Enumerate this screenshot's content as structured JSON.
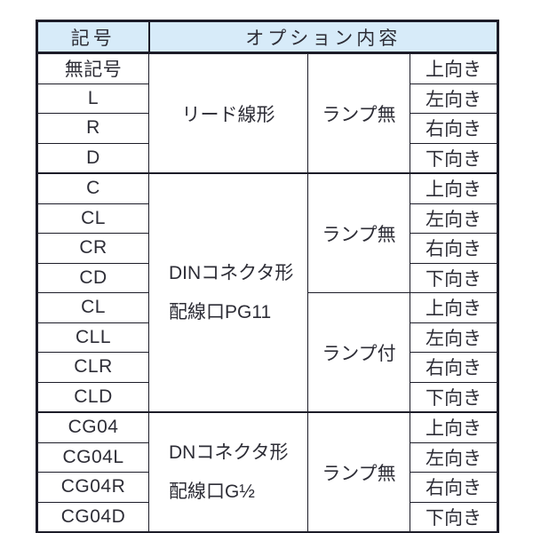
{
  "colors": {
    "header_bg": "#d7ebf9",
    "border": "#1c1c28",
    "text": "#2d2d36"
  },
  "table": {
    "header": {
      "symbol": "記号",
      "option": "オプション内容"
    },
    "groups": [
      {
        "codes": [
          "無記号",
          "L",
          "R",
          "D"
        ],
        "type_line1": "リード線形",
        "type_line2": "",
        "lamps": [
          "ランプ無"
        ],
        "directions": [
          "上向き",
          "左向き",
          "右向き",
          "下向き"
        ]
      },
      {
        "codes": [
          "C",
          "CL",
          "CR",
          "CD",
          "CL",
          "CLL",
          "CLR",
          "CLD"
        ],
        "type_line1": "DINコネクタ形",
        "type_line2": "配線口PG11",
        "lamps": [
          "ランプ無",
          "ランプ付"
        ],
        "directions": [
          "上向き",
          "左向き",
          "右向き",
          "下向き",
          "上向き",
          "左向き",
          "右向き",
          "下向き"
        ]
      },
      {
        "codes": [
          "CG04",
          "CG04L",
          "CG04R",
          "CG04D"
        ],
        "type_line1": "DNコネクタ形",
        "type_line2": "配線口G½",
        "lamps": [
          "ランプ無"
        ],
        "directions": [
          "上向き",
          "左向き",
          "右向き",
          "下向き"
        ]
      }
    ]
  }
}
